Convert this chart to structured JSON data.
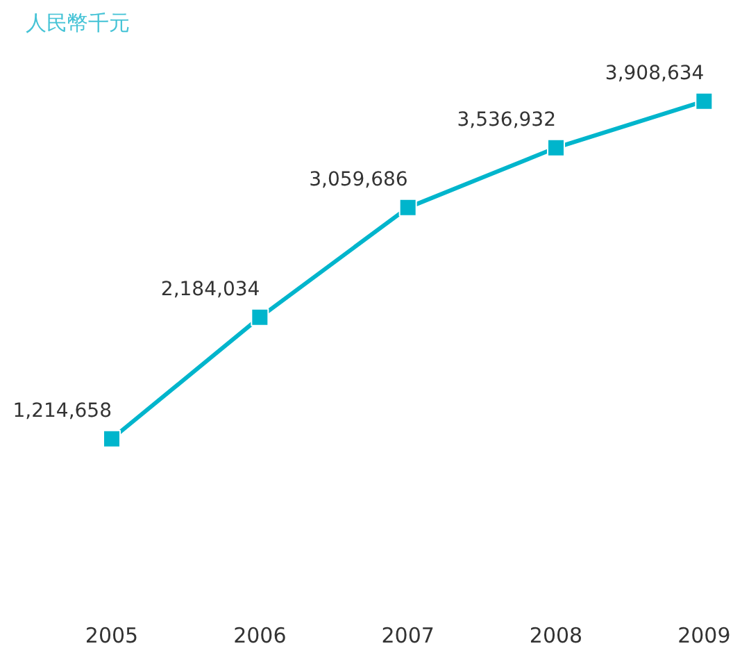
{
  "chart_data": {
    "type": "line",
    "title": "人民幣千元",
    "categories": [
      "2005",
      "2006",
      "2007",
      "2008",
      "2009"
    ],
    "series": [
      {
        "color": "#00b5cc",
        "values": [
          1214658,
          2184034,
          3059686,
          3536932,
          3908634
        ],
        "value_labels": [
          "1,214,658",
          "2,184,034",
          "3,059,686",
          "3,536,932",
          "3,908,634"
        ]
      }
    ],
    "marker": "square",
    "line_style": "solid"
  }
}
